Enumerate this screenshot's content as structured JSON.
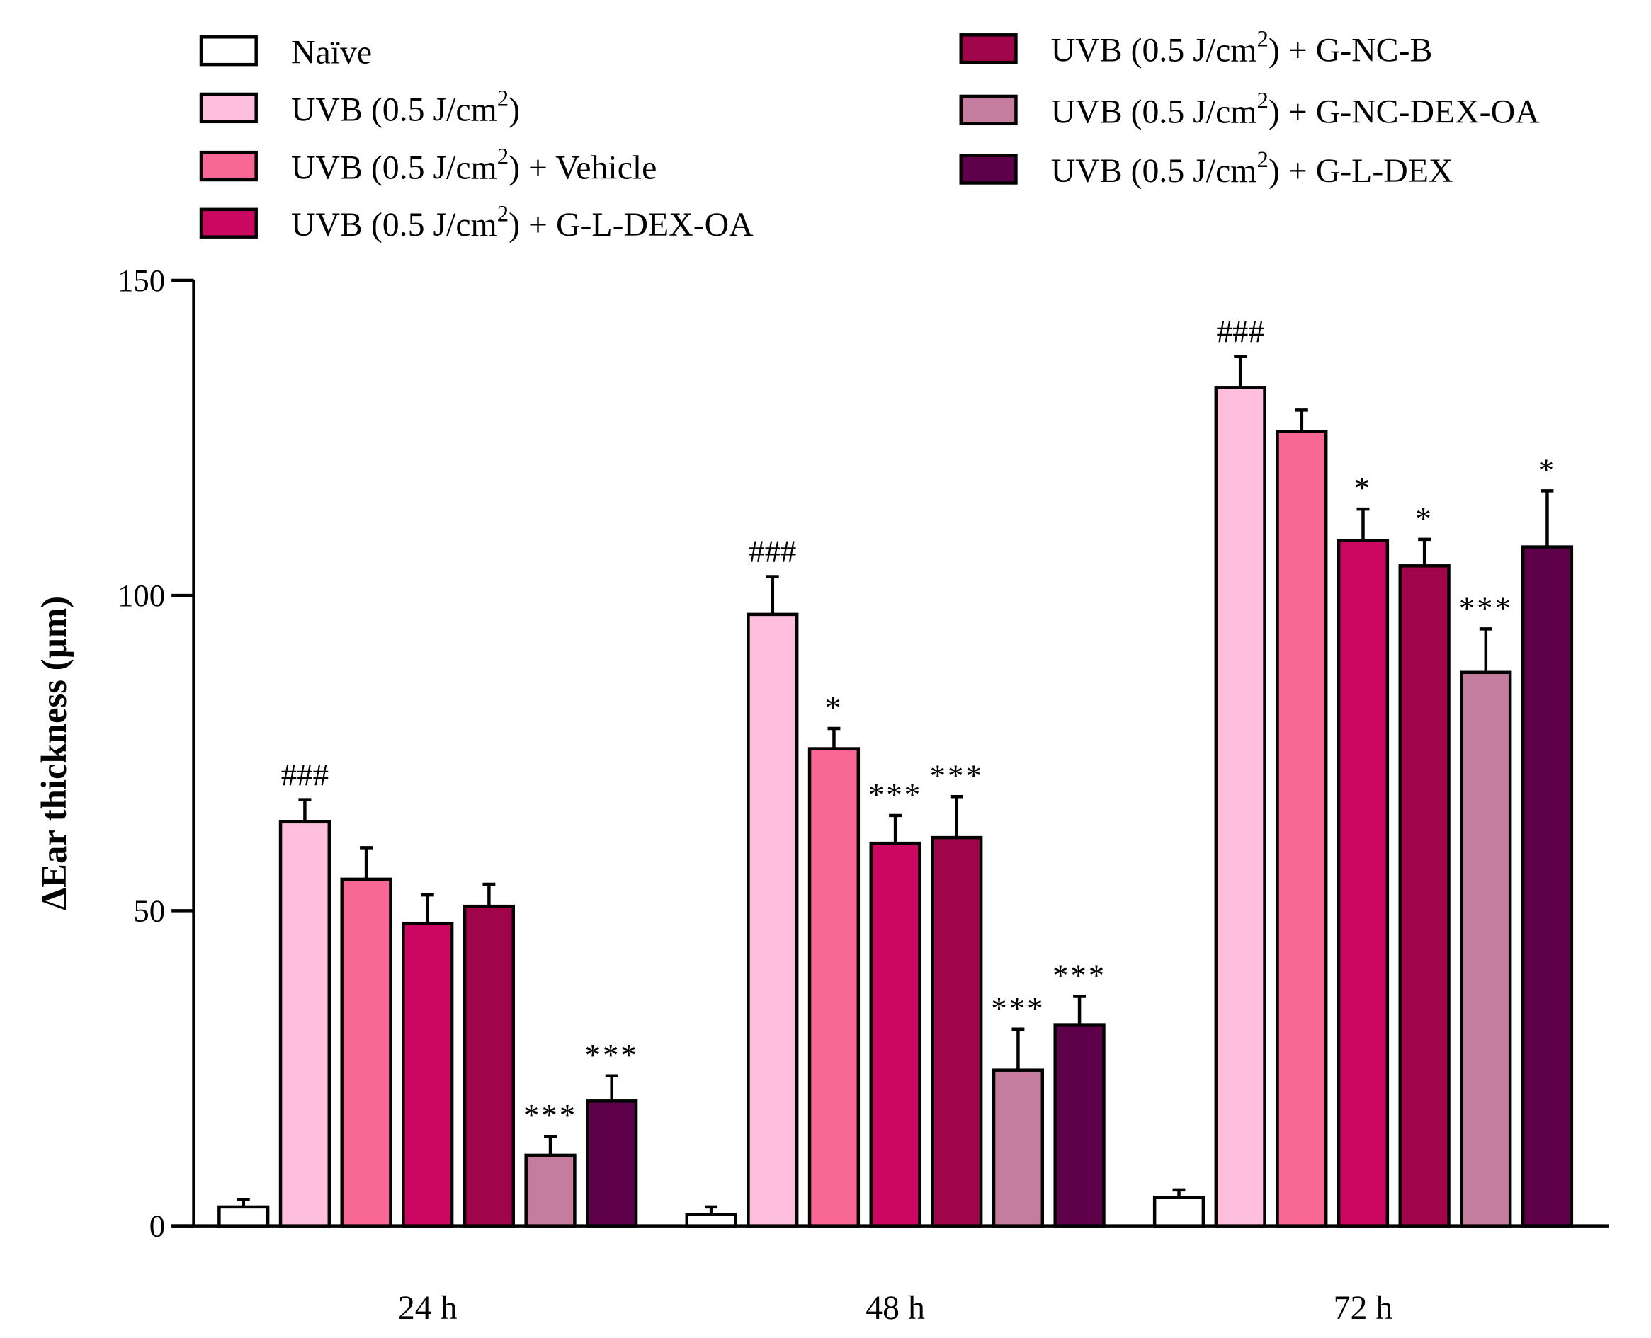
{
  "chart_data": {
    "type": "bar",
    "title": "",
    "xlabel": "",
    "ylabel": "ΔEar thickness (µm)",
    "ylim": [
      0,
      150
    ],
    "yticks": [
      0,
      50,
      100,
      150
    ],
    "ytick_labels": [
      "0",
      "50",
      "100",
      "150"
    ],
    "categories": [
      "24 h",
      "48 h",
      "72 h"
    ],
    "legend_placement": "top",
    "series": [
      {
        "name": "Naïve",
        "legend": {
          "main": "Naïve",
          "sup": "",
          "tail": ""
        },
        "color": "#FFFFFF",
        "values": [
          3.0,
          1.8,
          4.5
        ],
        "errors": [
          1.2,
          1.2,
          1.2
        ],
        "annotations": [
          "",
          "",
          ""
        ]
      },
      {
        "name": "UVB (0.5 J/cm2)",
        "legend": {
          "main": "UVB (0.5 J/cm",
          "sup": "2",
          "tail": ")"
        },
        "color": "#FDBFDD",
        "values": [
          64.1,
          97.0,
          133.0
        ],
        "errors": [
          3.5,
          6.0,
          4.9
        ],
        "annotations": [
          "###",
          "###",
          "###"
        ]
      },
      {
        "name": "UVB (0.5 J/cm2) + Vehicle",
        "legend": {
          "main": "UVB (0.5 J/cm",
          "sup": "2",
          "tail": ") + Vehicle"
        },
        "color": "#F86795",
        "values": [
          55.0,
          75.7,
          126.0
        ],
        "errors": [
          5.0,
          3.2,
          3.4
        ],
        "annotations": [
          "",
          "*",
          ""
        ]
      },
      {
        "name": "UVB (0.5 J/cm2) + G-L-DEX-OA",
        "legend": {
          "main": "UVB (0.5 J/cm",
          "sup": "2",
          "tail": ") + G-L-DEX-OA"
        },
        "color": "#CC0762",
        "values": [
          48.0,
          60.7,
          108.7
        ],
        "errors": [
          4.5,
          4.4,
          5.0
        ],
        "annotations": [
          "",
          "***",
          "*"
        ]
      },
      {
        "name": "UVB (0.5 J/cm2) + G-NC-B",
        "legend": {
          "main": "UVB (0.5 J/cm",
          "sup": "2",
          "tail": ") + G-NC-B"
        },
        "color": "#A0054B",
        "values": [
          50.7,
          61.6,
          104.7
        ],
        "errors": [
          3.5,
          6.5,
          4.2
        ],
        "annotations": [
          "",
          "***",
          "*"
        ]
      },
      {
        "name": "UVB (0.5 J/cm2) + G-NC-DEX-OA",
        "legend": {
          "main": "UVB (0.5 J/cm",
          "sup": "2",
          "tail": ") + G-NC-DEX-OA"
        },
        "color": "#C57D9F",
        "values": [
          11.2,
          24.7,
          87.8
        ],
        "errors": [
          3.0,
          6.5,
          6.9
        ],
        "annotations": [
          "***",
          "***",
          "***"
        ]
      },
      {
        "name": "UVB (0.5 J/cm2) + G-L-DEX",
        "legend": {
          "main": "UVB (0.5 J/cm",
          "sup": "2",
          "tail": ") + G-L-DEX"
        },
        "color": "#5E004A",
        "values": [
          19.8,
          31.9,
          107.7
        ],
        "errors": [
          4.0,
          4.5,
          8.9
        ],
        "annotations": [
          "***",
          "***",
          "*"
        ]
      }
    ]
  }
}
